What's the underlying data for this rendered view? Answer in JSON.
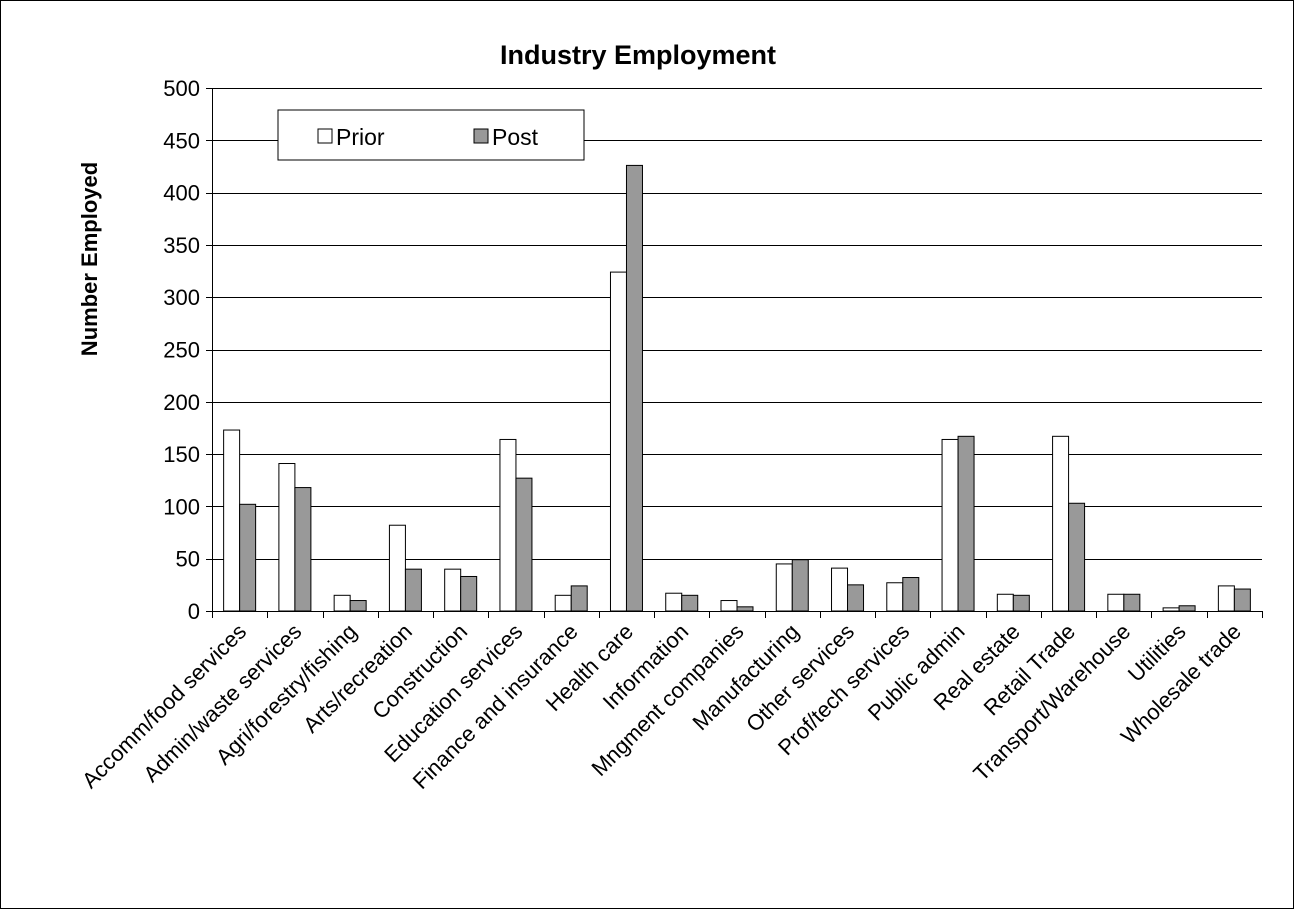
{
  "chart_data": {
    "type": "bar",
    "title": "Industry Employment",
    "xlabel": "",
    "ylabel": "Number Employed",
    "ylim": [
      0,
      500
    ],
    "yticks": [
      0,
      50,
      100,
      150,
      200,
      250,
      300,
      350,
      400,
      450,
      500
    ],
    "grid": true,
    "legend_position": "top-left",
    "categories": [
      "Accomm/food services",
      "Admin/waste services",
      "Agri/forestry/fishing",
      "Arts/recreation",
      "Construction",
      "Education services",
      "Finance and insurance",
      "Health care",
      "Information",
      "Mngment companies",
      "Manufacturing",
      "Other services",
      "Prof/tech services",
      "Public admin",
      "Real estate",
      "Retail Trade",
      "Transport/Warehouse",
      "Utilities",
      "Wholesale trade"
    ],
    "series": [
      {
        "name": "Prior",
        "color": "#ffffff",
        "values": [
          173,
          141,
          15,
          82,
          40,
          164,
          15,
          324,
          17,
          10,
          45,
          41,
          27,
          164,
          16,
          167,
          16,
          3,
          24
        ]
      },
      {
        "name": "Post",
        "color": "#999999",
        "values": [
          102,
          118,
          10,
          40,
          33,
          127,
          24,
          426,
          15,
          4,
          49,
          25,
          32,
          167,
          15,
          103,
          16,
          5,
          21
        ]
      }
    ]
  }
}
